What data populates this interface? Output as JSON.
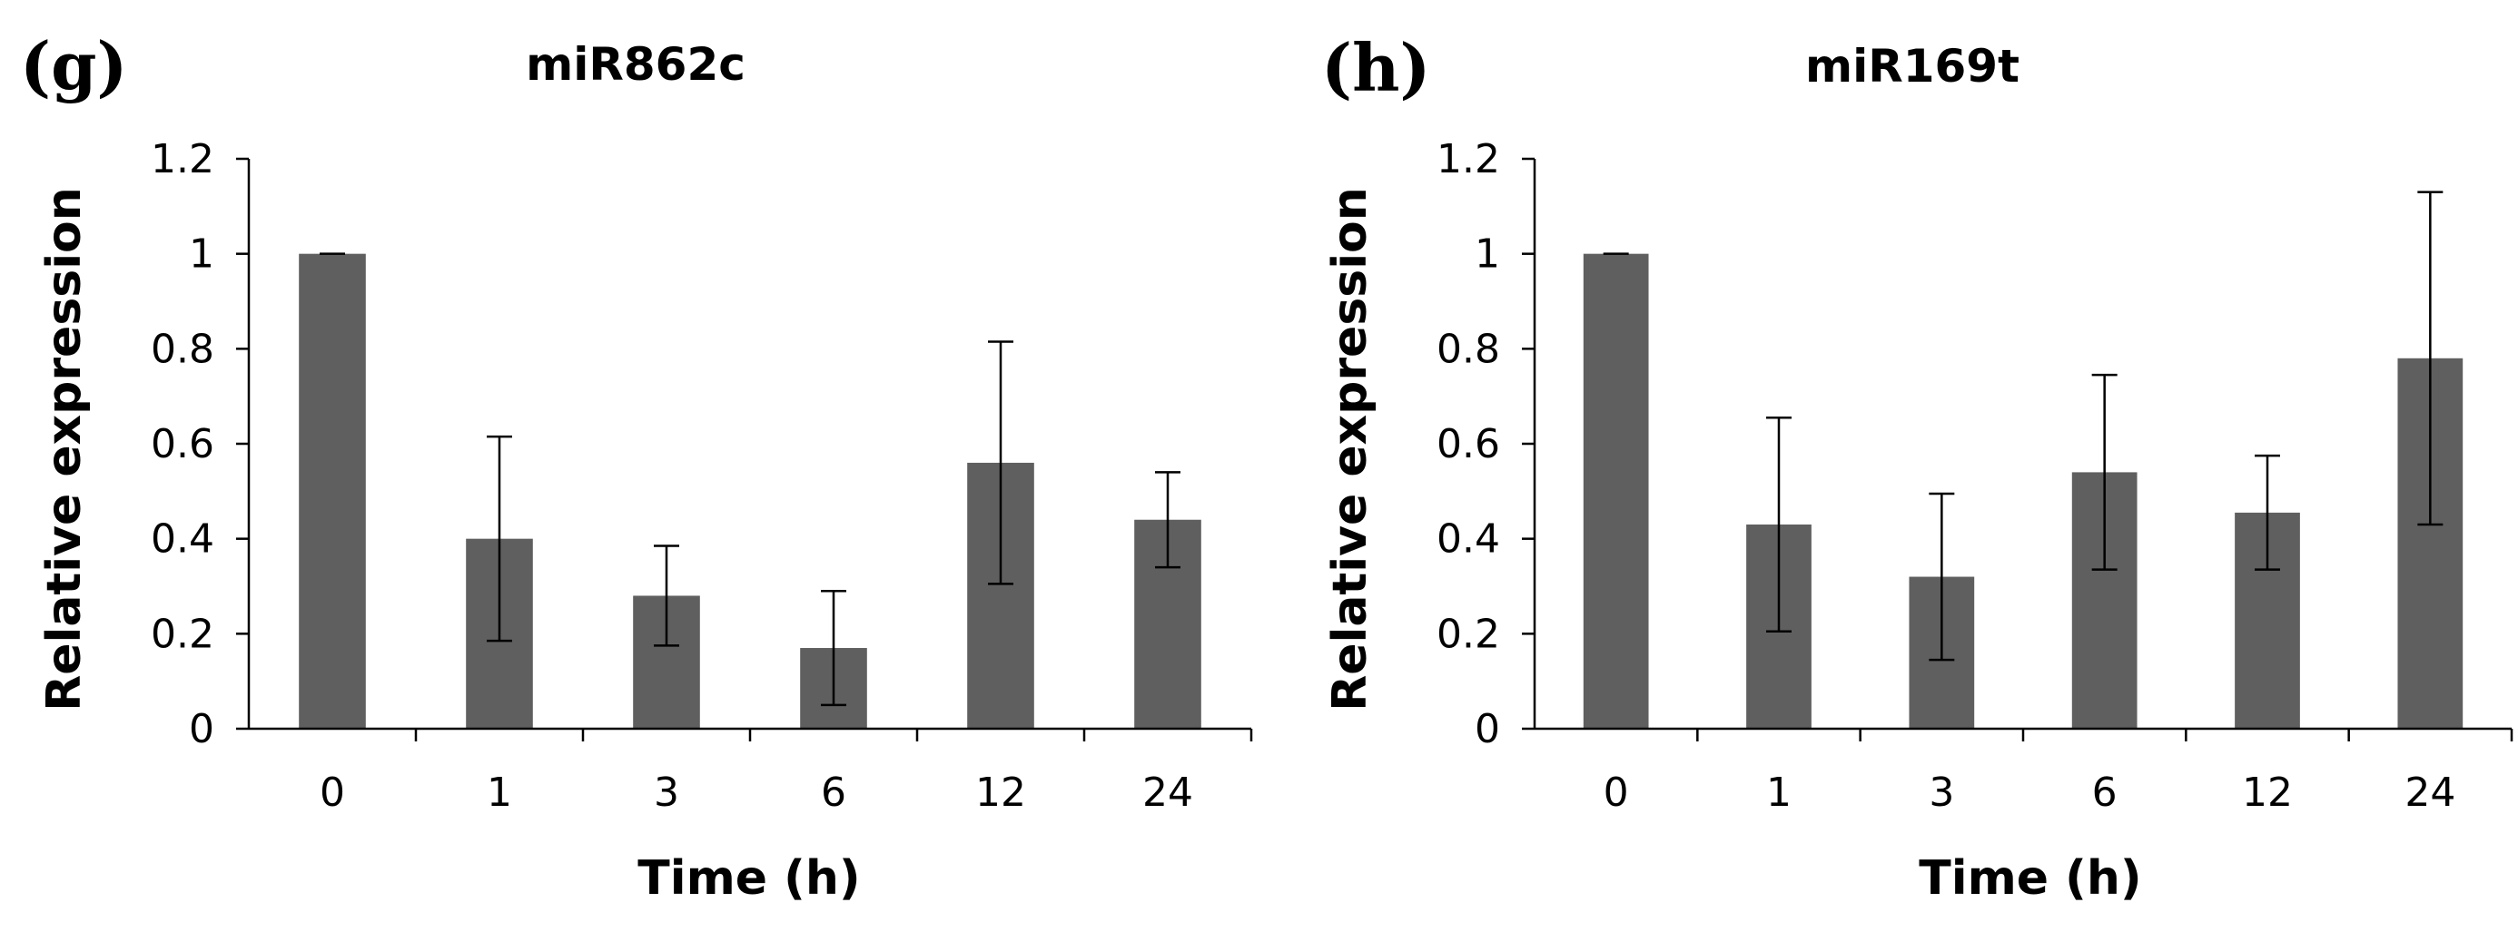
{
  "panels": [
    {
      "label": "(g)",
      "chart_data": {
        "type": "bar",
        "title": "miR862c",
        "xlabel": "Time (h)",
        "ylabel": "Relative expression",
        "categories": [
          "0",
          "1",
          "3",
          "6",
          "12",
          "24"
        ],
        "values": [
          1.0,
          0.4,
          0.28,
          0.17,
          0.56,
          0.44
        ],
        "errors": [
          0.0,
          0.215,
          0.105,
          0.12,
          0.255,
          0.1
        ],
        "ylim": [
          0,
          1.2
        ],
        "yticks": [
          "0",
          "0.2",
          "0.4",
          "0.6",
          "0.8",
          "1",
          "1.2"
        ],
        "bar_color": "#5f5f5f",
        "grid": false
      }
    },
    {
      "label": "(h)",
      "chart_data": {
        "type": "bar",
        "title": "miR169t",
        "xlabel": "Time (h)",
        "ylabel": "Relative expression",
        "categories": [
          "0",
          "1",
          "3",
          "6",
          "12",
          "24"
        ],
        "values": [
          1.0,
          0.43,
          0.32,
          0.54,
          0.455,
          0.78
        ],
        "errors": [
          0.0,
          0.225,
          0.175,
          0.205,
          0.12,
          0.35
        ],
        "ylim": [
          0,
          1.2
        ],
        "yticks": [
          "0",
          "0.2",
          "0.4",
          "0.6",
          "0.8",
          "1",
          "1.2"
        ],
        "bar_color": "#5f5f5f",
        "grid": false
      }
    }
  ]
}
